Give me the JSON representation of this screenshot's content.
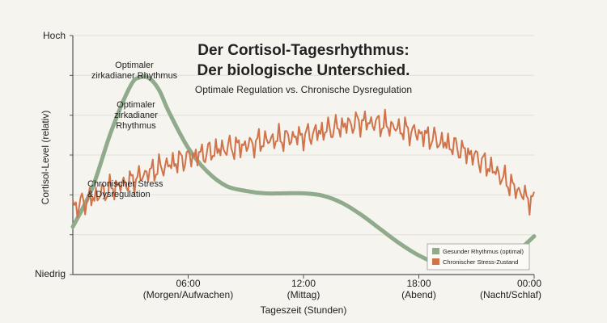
{
  "chart_data": {
    "type": "line",
    "title": "Der Cortisol-Tagesrhythmus:",
    "title_line2": "Der biologische Unterschied.",
    "subtitle": "Optimale Regulation vs. Chronische Dysregulation",
    "xlabel": "Tageszeit (Stunden)",
    "ylabel": "Cortisol-Level (relativ)",
    "ytick_top": "Hoch",
    "ytick_bottom": "Niedrig",
    "ylim": [
      0,
      10
    ],
    "xlim": [
      0,
      24
    ],
    "grid": true,
    "legend_position": "bottom-right",
    "xticks": [
      {
        "x": 6,
        "time": "06:00",
        "label": "(Morgen/Aufwachen)"
      },
      {
        "x": 12,
        "time": "12:00",
        "label": "(Mittag)"
      },
      {
        "x": 18,
        "time": "18:00",
        "label": "(Abend)"
      },
      {
        "x": 24,
        "time": "00:00",
        "label": "(Nacht/Schlaf)"
      }
    ],
    "annotations": [
      {
        "key": "optimal_1",
        "lines": [
          "Optimaler",
          "zirkadianer Rhythmus"
        ]
      },
      {
        "key": "optimal_2",
        "lines": [
          "Optimaler",
          "zirkadianer",
          "Rhythmus"
        ]
      },
      {
        "key": "stress",
        "lines": [
          "Chronischer Stress",
          "& Dysregulation"
        ]
      }
    ],
    "series": [
      {
        "name": "Gesunder Rhythmus (optimal)",
        "color": "#8fab8c",
        "x": [
          0,
          1,
          2,
          3,
          3.5,
          4,
          4.5,
          5,
          6,
          7,
          8,
          9,
          10,
          11,
          12,
          13,
          14,
          15,
          16,
          17,
          18,
          19,
          20,
          21,
          22,
          23,
          24
        ],
        "y": [
          2.0,
          3.6,
          6.0,
          7.9,
          8.25,
          8.2,
          7.7,
          6.8,
          5.3,
          4.3,
          3.7,
          3.5,
          3.4,
          3.4,
          3.4,
          3.3,
          3.0,
          2.5,
          1.9,
          1.3,
          0.8,
          0.45,
          0.3,
          0.3,
          0.5,
          0.9,
          1.6
        ]
      },
      {
        "name": "Chronischer Stress-Zustand",
        "color": "#d0734a",
        "x": [
          0,
          1,
          2,
          3,
          4,
          5,
          6,
          7,
          8,
          9,
          10,
          11,
          12,
          13,
          14,
          15,
          16,
          17,
          18,
          19,
          20,
          21,
          22,
          23,
          24
        ],
        "y": [
          2.8,
          3.2,
          3.6,
          3.9,
          4.3,
          4.6,
          4.9,
          5.1,
          5.3,
          5.4,
          5.6,
          5.7,
          5.8,
          6.0,
          6.2,
          6.4,
          6.3,
          6.1,
          5.9,
          5.6,
          5.3,
          4.9,
          4.3,
          3.6,
          3.0
        ]
      }
    ]
  }
}
